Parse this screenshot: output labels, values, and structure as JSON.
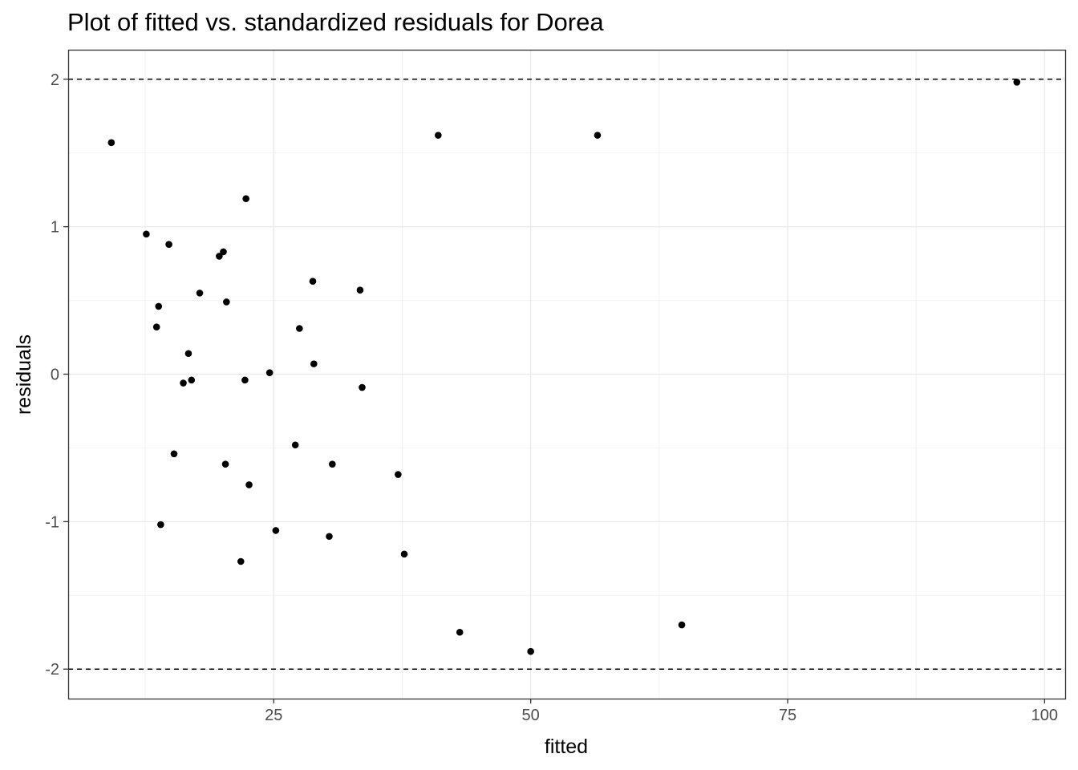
{
  "chart_data": {
    "type": "scatter",
    "title": "Plot of fitted vs. standardized residuals for Dorea",
    "xlabel": "fitted",
    "ylabel": "residuals",
    "xlim": [
      5.0,
      102.0
    ],
    "ylim": [
      -2.2,
      2.2
    ],
    "xticks": [
      25,
      50,
      75,
      100
    ],
    "yticks": [
      -2,
      -1,
      0,
      1,
      2
    ],
    "grid": true,
    "reference_lines": [
      2,
      -2
    ],
    "points": [
      {
        "x": 9.2,
        "y": 1.57
      },
      {
        "x": 12.6,
        "y": 0.95
      },
      {
        "x": 14.8,
        "y": 0.88
      },
      {
        "x": 13.8,
        "y": 0.46
      },
      {
        "x": 13.6,
        "y": 0.32
      },
      {
        "x": 14.0,
        "y": -1.02
      },
      {
        "x": 15.3,
        "y": -0.54
      },
      {
        "x": 16.2,
        "y": -0.06
      },
      {
        "x": 16.7,
        "y": 0.14
      },
      {
        "x": 17.0,
        "y": -0.04
      },
      {
        "x": 17.8,
        "y": 0.55
      },
      {
        "x": 19.7,
        "y": 0.8
      },
      {
        "x": 20.1,
        "y": 0.83
      },
      {
        "x": 20.4,
        "y": 0.49
      },
      {
        "x": 20.3,
        "y": -0.61
      },
      {
        "x": 21.8,
        "y": -1.27
      },
      {
        "x": 22.3,
        "y": 1.19
      },
      {
        "x": 22.2,
        "y": -0.04
      },
      {
        "x": 22.6,
        "y": -0.75
      },
      {
        "x": 24.6,
        "y": 0.01
      },
      {
        "x": 25.2,
        "y": -1.06
      },
      {
        "x": 27.1,
        "y": -0.48
      },
      {
        "x": 27.5,
        "y": 0.31
      },
      {
        "x": 28.8,
        "y": 0.63
      },
      {
        "x": 28.9,
        "y": 0.07
      },
      {
        "x": 30.4,
        "y": -1.1
      },
      {
        "x": 30.7,
        "y": -0.61
      },
      {
        "x": 33.4,
        "y": 0.57
      },
      {
        "x": 33.6,
        "y": -0.09
      },
      {
        "x": 37.1,
        "y": -0.68
      },
      {
        "x": 37.7,
        "y": -1.22
      },
      {
        "x": 41.0,
        "y": 1.62
      },
      {
        "x": 43.1,
        "y": -1.75
      },
      {
        "x": 50.0,
        "y": -1.88
      },
      {
        "x": 56.5,
        "y": 1.62
      },
      {
        "x": 64.7,
        "y": -1.7
      },
      {
        "x": 97.3,
        "y": 1.98
      }
    ]
  }
}
